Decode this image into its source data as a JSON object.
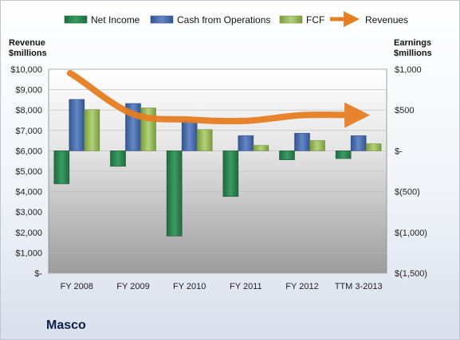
{
  "chart_data": {
    "type": "bar",
    "categories": [
      "FY 2008",
      "FY 2009",
      "FY 2010",
      "FY 2011",
      "FY 2012",
      "TTM 3-2013"
    ],
    "series": [
      {
        "name": "Net Income",
        "axis": "right",
        "color": "#2e8b57",
        "values": [
          -405,
          -190,
          -1045,
          -560,
          -110,
          -95
        ]
      },
      {
        "name": "Cash from Operations",
        "axis": "right",
        "color": "#4a6fb5",
        "values": [
          630,
          580,
          370,
          185,
          215,
          185
        ]
      },
      {
        "name": "FCF",
        "axis": "right",
        "color": "#9bbb59",
        "values": [
          505,
          525,
          260,
          65,
          125,
          85
        ]
      },
      {
        "name": "Revenues",
        "axis": "left",
        "type": "line",
        "color": "#e67e22",
        "values": [
          9600,
          7800,
          7530,
          7470,
          7750,
          7750
        ]
      }
    ],
    "left_axis": {
      "title_line1": "Revenue",
      "title_line2": "$millions",
      "ylim": [
        0,
        10000
      ],
      "ticks": [
        0,
        1000,
        2000,
        3000,
        4000,
        5000,
        6000,
        7000,
        8000,
        9000,
        10000
      ],
      "tick_labels": [
        "$-",
        "$1,000",
        "$2,000",
        "$3,000",
        "$4,000",
        "$5,000",
        "$6,000",
        "$7,000",
        "$8,000",
        "$9,000",
        "$10,000"
      ]
    },
    "right_axis": {
      "title_line1": "Earnings",
      "title_line2": "$millions",
      "ylim": [
        -1500,
        1000
      ],
      "ticks": [
        1000,
        500,
        0,
        -500,
        -1000,
        -1500
      ],
      "tick_labels": [
        "$1,000",
        "$500",
        "$-",
        "$(500)",
        "$(1,000)",
        "$(1,500)"
      ]
    },
    "legend": {
      "position": "top",
      "items": [
        "Net Income",
        "Cash from Operations",
        "FCF",
        "Revenues"
      ]
    },
    "company_label": "Masco"
  }
}
